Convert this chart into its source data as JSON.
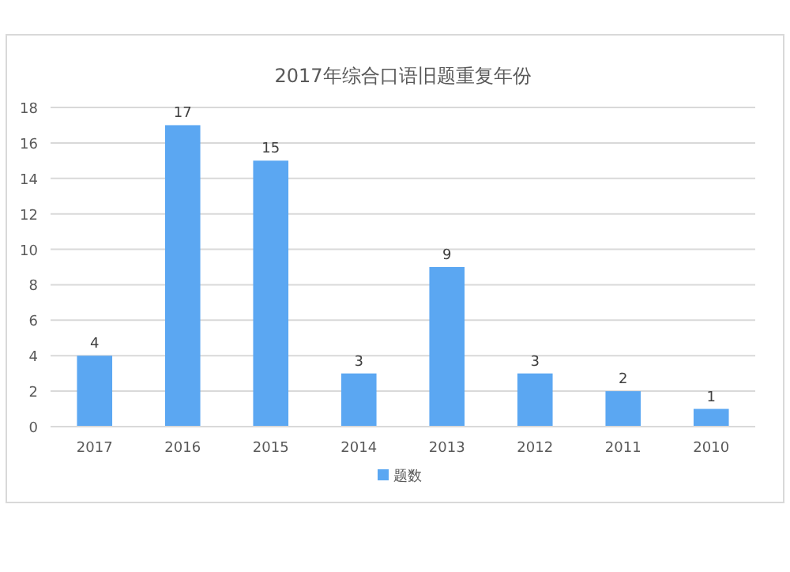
{
  "chart_data": {
    "type": "bar",
    "title": "2017年综合口语旧题重复年份",
    "categories": [
      "2017",
      "2016",
      "2015",
      "2014",
      "2013",
      "2012",
      "2011",
      "2010"
    ],
    "series": [
      {
        "name": "题数",
        "color": "#5ba7f2",
        "values": [
          4,
          17,
          15,
          3,
          9,
          3,
          2,
          1
        ]
      }
    ],
    "ylim": [
      0,
      18
    ],
    "yticks": [
      0,
      2,
      4,
      6,
      8,
      10,
      12,
      14,
      16,
      18
    ],
    "grid": "y",
    "legend": "bottom",
    "data_labels": true
  }
}
